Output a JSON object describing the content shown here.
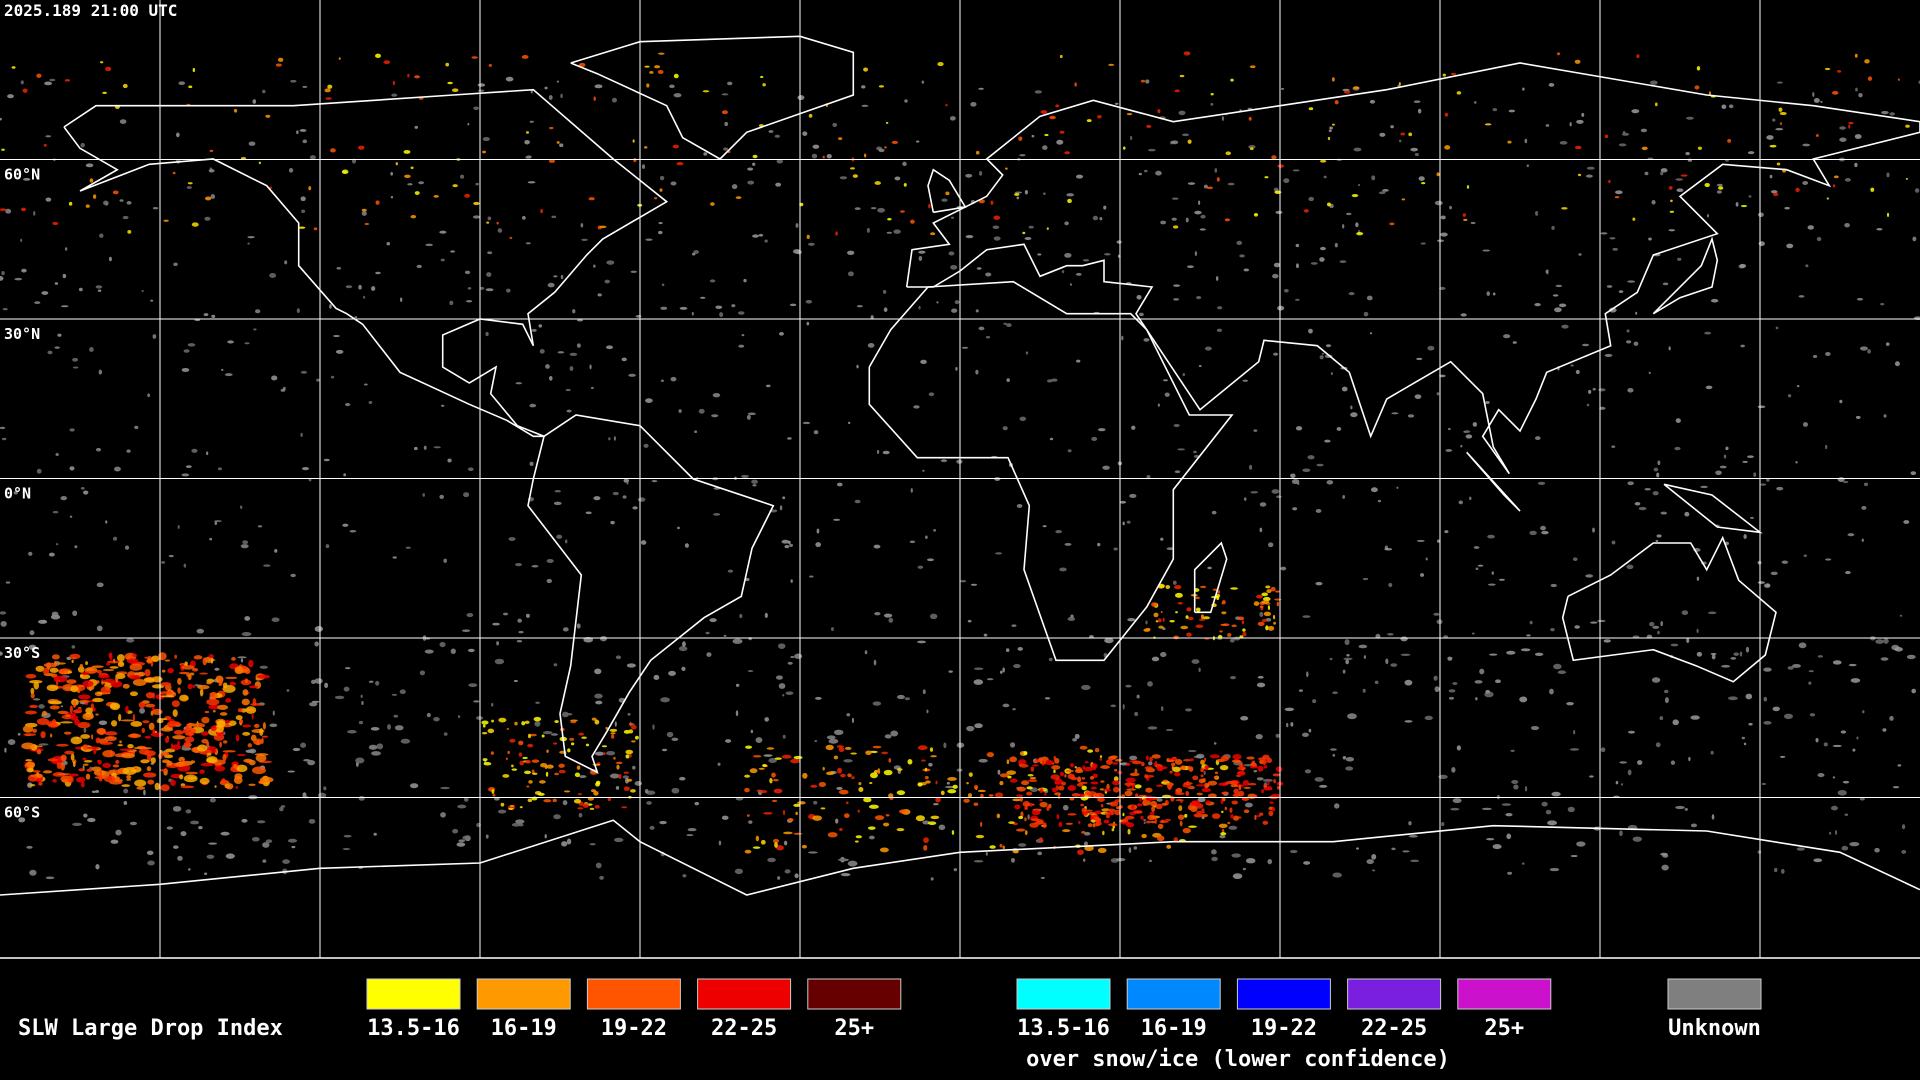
{
  "timestamp": "2025.189 21:00 UTC",
  "grid_labels": [
    "60°N",
    "30°N",
    "0°N",
    "30°S",
    "60°S"
  ],
  "legend": {
    "title": "SLW Large Drop Index",
    "standard": [
      {
        "label": "13.5-16",
        "color": "#ffff00"
      },
      {
        "label": "16-19",
        "color": "#ff9900"
      },
      {
        "label": "19-22",
        "color": "#ff5500"
      },
      {
        "label": "22-25",
        "color": "#ee0000"
      },
      {
        "label": "25+",
        "color": "#660000"
      }
    ],
    "snow_ice": [
      {
        "label": "13.5-16",
        "color": "#00ffff"
      },
      {
        "label": "16-19",
        "color": "#0088ff"
      },
      {
        "label": "19-22",
        "color": "#0000ff"
      },
      {
        "label": "22-25",
        "color": "#7a1fe0"
      },
      {
        "label": "25+",
        "color": "#cc11cc"
      }
    ],
    "snow_ice_caption": "over snow/ice (lower confidence)",
    "unknown": {
      "label": "Unknown",
      "color": "#7f7f7f"
    }
  }
}
